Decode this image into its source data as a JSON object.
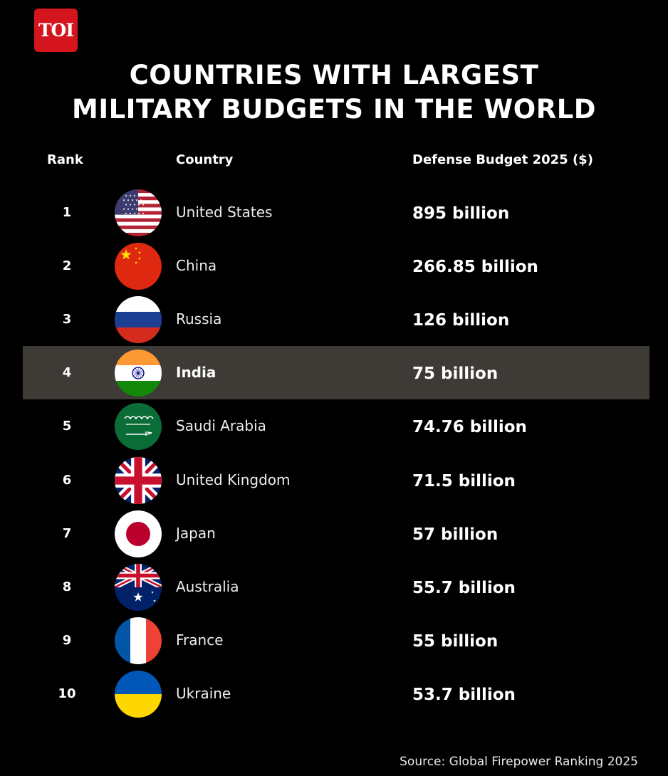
{
  "brand": {
    "logo_text": "TOI",
    "logo_color": "#d4151e"
  },
  "header": {
    "title_line1": "COUNTRIES WITH LARGEST",
    "title_line2": "MILITARY BUDGETS IN THE WORLD"
  },
  "columns": {
    "rank": "Rank",
    "country": "Country",
    "budget": "Defense Budget 2025 ($)"
  },
  "highlight_color": "#3e3b37",
  "highlight_rank": 4,
  "source": "Source: Global Firepower Ranking 2025",
  "chart_data": {
    "type": "table",
    "columns": [
      "Rank",
      "Country",
      "Defense Budget 2025 ($)"
    ],
    "rows": [
      {
        "rank": "1",
        "country": "United States",
        "budget": "895 billion",
        "value": 895,
        "flag": "us-flag-icon"
      },
      {
        "rank": "2",
        "country": "China",
        "budget": "266.85 billion",
        "value": 266.85,
        "flag": "china-flag-icon"
      },
      {
        "rank": "3",
        "country": "Russia",
        "budget": "126 billion",
        "value": 126,
        "flag": "russia-flag-icon"
      },
      {
        "rank": "4",
        "country": "India",
        "budget": "75 billion",
        "value": 75,
        "flag": "india-flag-icon"
      },
      {
        "rank": "5",
        "country": "Saudi Arabia",
        "budget": "74.76 billion",
        "value": 74.76,
        "flag": "saudi-arabia-flag-icon"
      },
      {
        "rank": "6",
        "country": "United Kingdom",
        "budget": "71.5 billion",
        "value": 71.5,
        "flag": "uk-flag-icon"
      },
      {
        "rank": "7",
        "country": "Japan",
        "budget": "57 billion",
        "value": 57,
        "flag": "japan-flag-icon"
      },
      {
        "rank": "8",
        "country": "Australia",
        "budget": "55.7 billion",
        "value": 55.7,
        "flag": "australia-flag-icon"
      },
      {
        "rank": "9",
        "country": "France",
        "budget": "55 billion",
        "value": 55,
        "flag": "france-flag-icon"
      },
      {
        "rank": "10",
        "country": "Ukraine",
        "budget": "53.7 billion",
        "value": 53.7,
        "flag": "ukraine-flag-icon"
      }
    ]
  }
}
